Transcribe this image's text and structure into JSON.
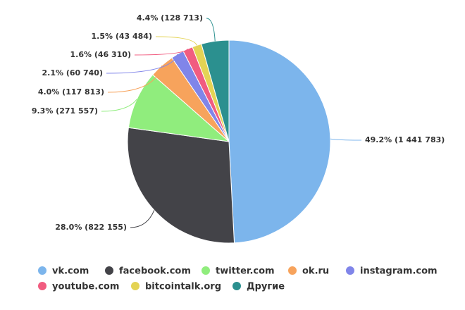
{
  "chart_data": {
    "type": "pie",
    "categories": [
      "vk.com",
      "facebook.com",
      "twitter.com",
      "ok.ru",
      "instagram.com",
      "youtube.com",
      "bitcointalk.org",
      "Другие"
    ],
    "values": [
      1441783,
      822155,
      271557,
      117813,
      60740,
      46310,
      43484,
      128713
    ],
    "value_labels": [
      "49.2% (1 441 783)",
      "28.0% (822 155)",
      "9.3% (271 557)",
      "4.0% (117 813)",
      "2.1% (60 740)",
      "1.6% (46 310)",
      "1.5% (43 484)",
      "4.4% (128 713)"
    ],
    "colors": [
      "#7cb5ec",
      "#434348",
      "#90ed7d",
      "#f7a35c",
      "#8085e9",
      "#f15c80",
      "#e4d354",
      "#2b908f"
    ]
  }
}
